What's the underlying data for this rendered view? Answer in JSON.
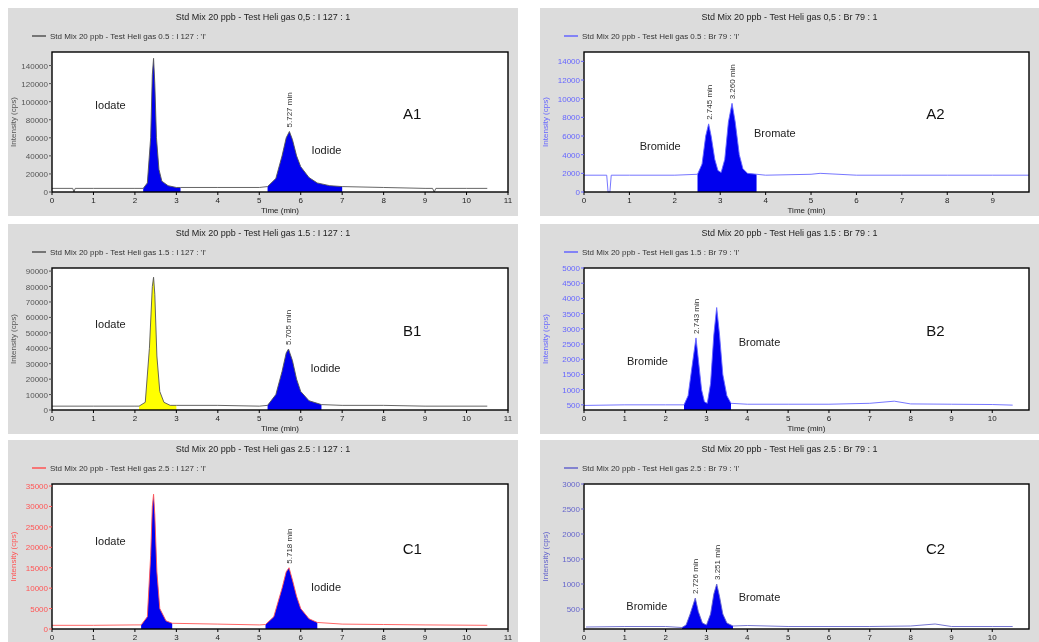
{
  "chart_data": [
    {
      "type": "line",
      "title": "Std Mix 20 ppb - Test Heli gas 0,5 : I 127 : 1",
      "xlabel": "Time (min)",
      "ylabel": "Intensity (cps)",
      "legend": "top left",
      "xlim": [
        0,
        11
      ],
      "xticks": [
        0,
        1,
        2,
        3,
        4,
        5,
        6,
        7,
        8,
        9,
        10,
        11
      ],
      "ylim": [
        0,
        155000
      ],
      "yticks": [
        0,
        20000,
        40000,
        60000,
        80000,
        100000,
        120000,
        140000
      ],
      "series": [
        {
          "name": "Std Mix 20 ppb - Test Heli gas 0.5 : I 127 : 'I'",
          "color": "#555555",
          "x": [
            0,
            0.5,
            0.53,
            0.56,
            1,
            2,
            2.2,
            2.3,
            2.38,
            2.42,
            2.45,
            2.48,
            2.52,
            2.58,
            2.65,
            2.8,
            3,
            3.1,
            4,
            5,
            5.2,
            5.4,
            5.55,
            5.65,
            5.727,
            5.8,
            5.9,
            6,
            6.2,
            6.4,
            6.7,
            7,
            8,
            9,
            9.18,
            9.22,
            9.26,
            10,
            10.5
          ],
          "values": [
            4000,
            4000,
            0,
            4000,
            4000,
            4000,
            4000,
            10000,
            60000,
            130000,
            148000,
            120000,
            60000,
            25000,
            12000,
            7000,
            5000,
            5000,
            5000,
            5000,
            6000,
            15000,
            40000,
            60000,
            67000,
            58000,
            40000,
            28000,
            16000,
            10000,
            7000,
            6000,
            5000,
            4000,
            4000,
            0,
            4000,
            4000,
            4000
          ]
        },
        {
          "type": "area",
          "color": "#0000ee",
          "x": [
            2.2,
            2.3,
            2.38,
            2.42,
            2.45,
            2.48,
            2.52,
            2.58,
            2.65,
            2.8,
            3,
            3.1,
            4,
            5.2,
            5.4,
            5.55,
            5.65,
            5.727,
            5.8,
            5.9,
            6,
            6.2,
            6.4,
            6.7,
            7
          ],
          "values": [
            4000,
            10000,
            60000,
            130000,
            148000,
            120000,
            60000,
            25000,
            12000,
            7000,
            5000,
            5000,
            null,
            6000,
            15000,
            40000,
            60000,
            67000,
            58000,
            40000,
            28000,
            16000,
            10000,
            7000,
            6000
          ]
        }
      ],
      "annotations": [
        "Iodate",
        "Iodide",
        {
          "text": "5.727 min",
          "x": 5.727,
          "y": 67000
        },
        "A1"
      ]
    },
    {
      "type": "line",
      "title": "Std Mix 20 ppb - Test Heli gas 0,5 : Br 79 : 1",
      "xlabel": "Time (min)",
      "ylabel": "Intensity (cps)",
      "legend": "top left",
      "xlim": [
        0,
        9.8
      ],
      "xticks": [
        0,
        1,
        2,
        3,
        4,
        5,
        6,
        7,
        8,
        9
      ],
      "ylim": [
        0,
        15000
      ],
      "yticks": [
        0,
        2000,
        4000,
        6000,
        8000,
        10000,
        12000,
        14000
      ],
      "series": [
        {
          "name": "Std Mix 20 ppb - Test Heli gas 0.5 : Br 79 : 'I'",
          "color": "#6666ff",
          "x": [
            0,
            0.5,
            0.53,
            0.57,
            0.6,
            1,
            2,
            2.5,
            2.6,
            2.68,
            2.745,
            2.8,
            2.88,
            2.95,
            3.02,
            3.1,
            3.18,
            3.26,
            3.33,
            3.42,
            3.5,
            3.6,
            3.8,
            4,
            5,
            5.2,
            6,
            7,
            8,
            9,
            9.8
          ],
          "values": [
            1800,
            1800,
            0,
            0,
            1800,
            1800,
            1800,
            1900,
            3000,
            6000,
            7300,
            6000,
            3500,
            2300,
            2100,
            3500,
            7500,
            9500,
            7500,
            4000,
            2500,
            2000,
            1900,
            1800,
            1900,
            2000,
            1800,
            1800,
            1800,
            1800,
            1800
          ]
        },
        {
          "type": "area",
          "color": "#0000ee",
          "x": [
            2.5,
            2.6,
            2.68,
            2.745,
            2.8,
            2.88,
            2.95,
            3.02,
            3.1,
            3.18,
            3.26,
            3.33,
            3.42,
            3.5,
            3.6,
            3.8
          ],
          "values": [
            1900,
            3000,
            6000,
            7300,
            6000,
            3500,
            2300,
            2100,
            3500,
            7500,
            9500,
            7500,
            4000,
            2500,
            2000,
            1900
          ]
        }
      ],
      "annotations": [
        "Bromide",
        "Bromate",
        {
          "text": "2.745 min",
          "x": 2.745,
          "y": 7300
        },
        {
          "text": "3.260 min",
          "x": 3.26,
          "y": 9500
        },
        "A2"
      ]
    },
    {
      "type": "line",
      "title": "Std Mix 20 ppb - Test Heli gas 1.5 : I 127 : 1",
      "xlabel": "Time (min)",
      "ylabel": "Intensity (cps)",
      "legend": "top left",
      "xlim": [
        0,
        11
      ],
      "xticks": [
        0,
        1,
        2,
        3,
        4,
        5,
        6,
        7,
        8,
        9,
        10,
        11
      ],
      "ylim": [
        0,
        92000
      ],
      "yticks": [
        0,
        10000,
        20000,
        30000,
        40000,
        50000,
        60000,
        70000,
        80000,
        90000
      ],
      "series": [
        {
          "name": "Std Mix 20 ppb - Test Heli gas 1.5 : I 127 : 'I'",
          "color": "#555555",
          "x": [
            0,
            1,
            2,
            2.1,
            2.25,
            2.35,
            2.42,
            2.45,
            2.48,
            2.53,
            2.6,
            2.7,
            2.85,
            3,
            4,
            5,
            5.2,
            5.4,
            5.55,
            5.65,
            5.705,
            5.8,
            5.9,
            6,
            6.2,
            6.5,
            7,
            8,
            9,
            10.5
          ],
          "values": [
            2500,
            2500,
            2500,
            2500,
            5000,
            40000,
            80000,
            86000,
            75000,
            35000,
            12000,
            5000,
            3000,
            3000,
            3000,
            2500,
            3000,
            10000,
            25000,
            37000,
            39500,
            32000,
            20000,
            12000,
            6000,
            3500,
            3000,
            3000,
            2500,
            2500
          ]
        },
        {
          "type": "area",
          "color": "#ffff00",
          "x": [
            2.1,
            2.25,
            2.35,
            2.42,
            2.45,
            2.48,
            2.53,
            2.6,
            2.7,
            2.85,
            3
          ],
          "values": [
            2500,
            5000,
            40000,
            80000,
            86000,
            75000,
            35000,
            12000,
            5000,
            3000,
            3000
          ]
        },
        {
          "type": "area",
          "color": "#0000ee",
          "x": [
            5.2,
            5.4,
            5.55,
            5.65,
            5.705,
            5.8,
            5.9,
            6,
            6.2,
            6.5
          ],
          "values": [
            3000,
            10000,
            25000,
            37000,
            39500,
            32000,
            20000,
            12000,
            6000,
            3500
          ]
        }
      ],
      "annotations": [
        "Iodate",
        "Iodide",
        {
          "text": "5.705 min",
          "x": 5.705,
          "y": 39500
        },
        "B1"
      ]
    },
    {
      "type": "line",
      "title": "Std Mix 20 ppb - Test Heli gas 1.5 : Br 79 : 1",
      "xlabel": "Time (min)",
      "ylabel": "Intensity (cps)",
      "legend": "top left",
      "xlim": [
        0,
        10.9
      ],
      "xticks": [
        0,
        1,
        2,
        3,
        4,
        5,
        6,
        7,
        8,
        9,
        10
      ],
      "ylim": [
        330,
        5000
      ],
      "yticks": [
        500,
        1000,
        1500,
        2000,
        2500,
        3000,
        3500,
        4000,
        4500,
        5000
      ],
      "series": [
        {
          "name": "Std Mix 20 ppb - Test Heli gas 1.5 : Br 79 : 'I'",
          "color": "#6666ff",
          "x": [
            0,
            1,
            2,
            2.45,
            2.55,
            2.65,
            2.743,
            2.8,
            2.88,
            2.95,
            3.02,
            3.1,
            3.18,
            3.25,
            3.32,
            3.4,
            3.5,
            3.6,
            4,
            5,
            6,
            7,
            7.6,
            8,
            9,
            10,
            10.5
          ],
          "values": [
            480,
            500,
            500,
            500,
            800,
            1800,
            2700,
            2000,
            1000,
            600,
            550,
            1200,
            2800,
            3700,
            2800,
            1500,
            800,
            550,
            520,
            520,
            520,
            550,
            620,
            530,
            520,
            510,
            490
          ]
        },
        {
          "type": "area",
          "color": "#0000ee",
          "x": [
            2.45,
            2.55,
            2.65,
            2.743,
            2.8,
            2.88,
            2.95,
            3.02,
            3.1,
            3.18,
            3.25,
            3.32,
            3.4,
            3.5,
            3.6
          ],
          "values": [
            500,
            800,
            1800,
            2700,
            2000,
            1000,
            600,
            550,
            1200,
            2800,
            3700,
            2800,
            1500,
            800,
            550
          ]
        }
      ],
      "annotations": [
        "Bromide",
        "Bromate",
        {
          "text": "2.743 min",
          "x": 2.743,
          "y": 2700
        },
        "B2"
      ]
    },
    {
      "type": "line",
      "title": "Std Mix 20 ppb - Test Heli gas 2.5 : I 127 : 1",
      "ylabel": "Intensity (cps)",
      "legend": "top left",
      "xlim": [
        0,
        11
      ],
      "xticks": [
        0,
        1,
        2,
        3,
        4,
        5,
        6,
        7,
        8,
        9,
        10,
        11
      ],
      "ylim": [
        0,
        35500
      ],
      "yticks": [
        0,
        5000,
        10000,
        15000,
        20000,
        25000,
        30000,
        35000
      ],
      "series": [
        {
          "name": "Std Mix 20 ppb - Test Heli gas 2.5 : I 127 : 'I'",
          "color": "#ff5555",
          "x": [
            0,
            1,
            2,
            2.15,
            2.3,
            2.38,
            2.42,
            2.45,
            2.48,
            2.53,
            2.6,
            2.75,
            2.9,
            4,
            5,
            5.15,
            5.35,
            5.55,
            5.65,
            5.718,
            5.8,
            5.9,
            6,
            6.2,
            6.4,
            7,
            8,
            9,
            10.5
          ],
          "values": [
            900,
            900,
            1000,
            1000,
            3000,
            18000,
            30000,
            33000,
            28000,
            14000,
            5000,
            2000,
            1400,
            1200,
            1000,
            1100,
            3000,
            10000,
            14000,
            15000,
            12000,
            8000,
            5000,
            2500,
            1600,
            1200,
            1100,
            1000,
            900
          ]
        },
        {
          "type": "area",
          "color": "#0000ee",
          "x": [
            2.15,
            2.3,
            2.38,
            2.42,
            2.45,
            2.48,
            2.53,
            2.6,
            2.75,
            2.9,
            4,
            5.15,
            5.35,
            5.55,
            5.65,
            5.718,
            5.8,
            5.9,
            6,
            6.2,
            6.4
          ],
          "values": [
            1000,
            3000,
            18000,
            30000,
            33000,
            28000,
            14000,
            5000,
            2000,
            1400,
            null,
            1100,
            3000,
            10000,
            14000,
            15000,
            12000,
            8000,
            5000,
            2500,
            1600
          ]
        }
      ],
      "annotations": [
        "Iodate",
        "Iodide",
        {
          "text": "5.718 min",
          "x": 5.718,
          "y": 15000
        },
        "C1"
      ]
    },
    {
      "type": "line",
      "title": "Std Mix 20 ppb - Test Heli gas 2.5 : Br 79 : 1",
      "ylabel": "Intensity (cps)",
      "legend": "top left",
      "xlim": [
        0,
        10.9
      ],
      "xticks": [
        0,
        1,
        2,
        3,
        4,
        5,
        6,
        7,
        8,
        9,
        10
      ],
      "ylim": [
        100,
        3000
      ],
      "yticks": [
        500,
        1000,
        1500,
        2000,
        2500,
        3000
      ],
      "series": [
        {
          "name": "Std Mix 20 ppb - Test Heli gas 2.5 : Br 79 : 'I'",
          "color": "#6666cc",
          "x": [
            0.05,
            1,
            2,
            2.4,
            2.5,
            2.6,
            2.726,
            2.8,
            2.9,
            3,
            3.1,
            3.18,
            3.251,
            3.32,
            3.4,
            3.5,
            3.65,
            4,
            5,
            6,
            7,
            8,
            8.6,
            9,
            10,
            10.5
          ],
          "values": [
            140,
            150,
            150,
            130,
            180,
            400,
            720,
            450,
            220,
            180,
            400,
            800,
            1000,
            750,
            400,
            220,
            160,
            170,
            150,
            150,
            150,
            160,
            200,
            150,
            150,
            150
          ]
        },
        {
          "type": "area",
          "color": "#0000ee",
          "x": [
            2.4,
            2.5,
            2.6,
            2.726,
            2.8,
            2.9,
            3,
            3.1,
            3.18,
            3.251,
            3.32,
            3.4,
            3.5,
            3.65
          ],
          "values": [
            130,
            180,
            400,
            720,
            450,
            220,
            180,
            400,
            800,
            1000,
            750,
            400,
            220,
            160
          ]
        }
      ],
      "annotations": [
        "Bromide",
        "Bromate",
        {
          "text": "2.726 min",
          "x": 2.726,
          "y": 720
        },
        {
          "text": "3.251 min",
          "x": 3.251,
          "y": 1000
        },
        "C2"
      ]
    }
  ]
}
